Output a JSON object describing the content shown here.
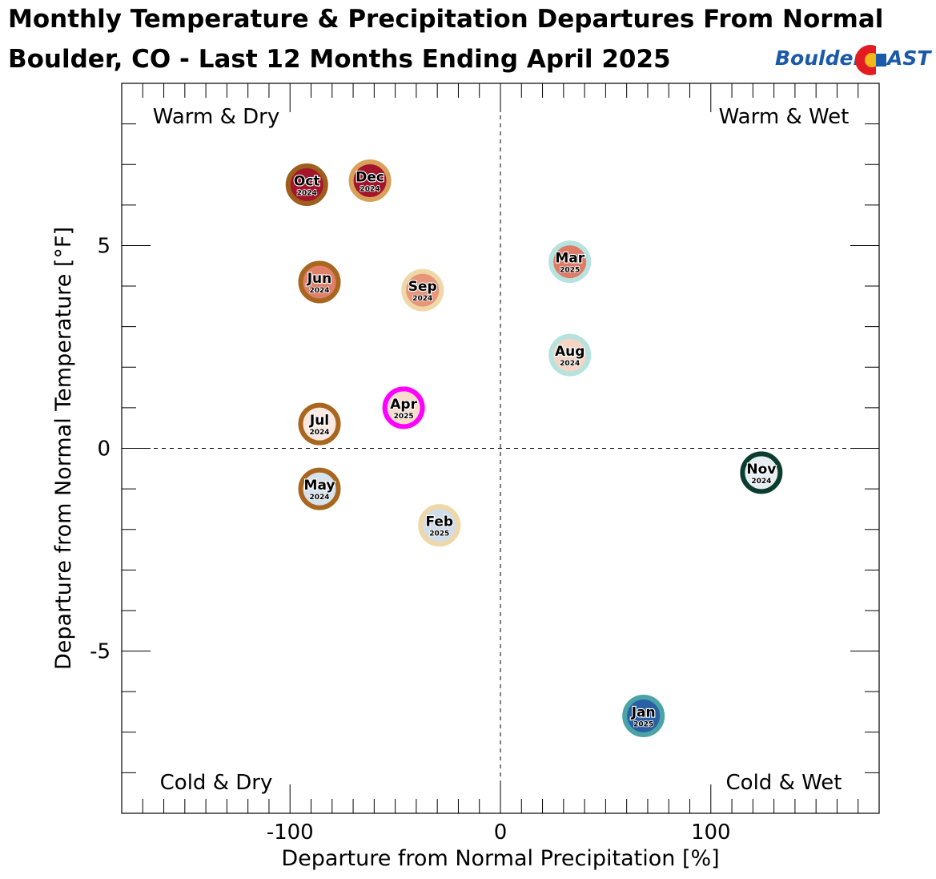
{
  "title": {
    "line1": "Monthly Temperature & Precipitation Departures From Normal",
    "line2": "Boulder, CO - Last 12 Months Ending April 2025"
  },
  "logo": {
    "text_left": "Boulder",
    "text_right": "AST"
  },
  "chart_data": {
    "type": "scatter",
    "xlabel": "Departure from Normal Precipitation [%]",
    "ylabel": "Departure from Normal Temperature [°F]",
    "xlim": [
      -180,
      180
    ],
    "ylim": [
      -9,
      9
    ],
    "x_ticks": [
      -100,
      0,
      100
    ],
    "y_ticks": [
      -5,
      0,
      5
    ],
    "grid": false,
    "zero_lines": "dashed",
    "quadrant_labels": {
      "top_left": "Warm & Dry",
      "top_right": "Warm & Wet",
      "bottom_left": "Cold & Dry",
      "bottom_right": "Cold & Wet"
    },
    "points": [
      {
        "month": "Oct",
        "year": "2024",
        "x": -92,
        "y": 6.5,
        "fill": "#a3152a",
        "ring": "#9e5e1c"
      },
      {
        "month": "Dec",
        "year": "2024",
        "x": -62,
        "y": 6.6,
        "fill": "#a3152a",
        "ring": "#d9a05a"
      },
      {
        "month": "Jun",
        "year": "2024",
        "x": -86,
        "y": 4.1,
        "fill": "#e0806a",
        "ring": "#a8661f"
      },
      {
        "month": "Sep",
        "year": "2024",
        "x": -37,
        "y": 3.9,
        "fill": "#e8957a",
        "ring": "#eed8a8"
      },
      {
        "month": "Mar",
        "year": "2025",
        "x": 33,
        "y": 4.6,
        "fill": "#de7b66",
        "ring": "#b6e3df"
      },
      {
        "month": "Aug",
        "year": "2024",
        "x": 33,
        "y": 2.3,
        "fill": "#f5d4c3",
        "ring": "#b6e3df"
      },
      {
        "month": "Apr",
        "year": "2025",
        "x": -46,
        "y": 1.0,
        "fill": "#f8dccb",
        "ring": "#ff00ff"
      },
      {
        "month": "Jul",
        "year": "2024",
        "x": -86,
        "y": 0.6,
        "fill": "#fbe9e1",
        "ring": "#a8661f"
      },
      {
        "month": "May",
        "year": "2024",
        "x": -86,
        "y": -1.0,
        "fill": "#d6e2ee",
        "ring": "#a8661f"
      },
      {
        "month": "Feb",
        "year": "2025",
        "x": -29,
        "y": -1.9,
        "fill": "#cfdde9",
        "ring": "#eed8a8"
      },
      {
        "month": "Nov",
        "year": "2024",
        "x": 124,
        "y": -0.6,
        "fill": "#e6eef4",
        "ring": "#0b3d2f"
      },
      {
        "month": "Jan",
        "year": "2025",
        "x": 68,
        "y": -6.6,
        "fill": "#2a5fa3",
        "ring": "#4aa3a6"
      }
    ]
  }
}
